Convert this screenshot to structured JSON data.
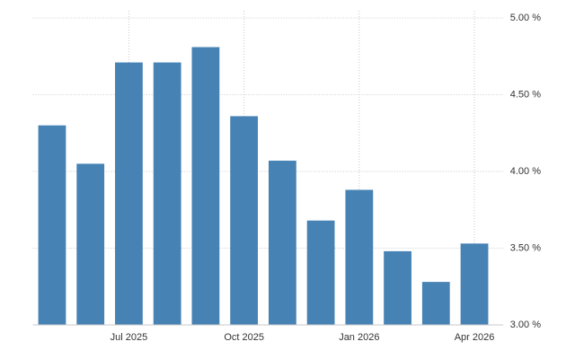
{
  "chart_data": {
    "type": "bar",
    "categories": [
      null,
      null,
      "Jul 2025",
      null,
      null,
      "Oct 2025",
      null,
      null,
      "Jan 2026",
      null,
      null,
      "Apr 2026"
    ],
    "values": [
      4.3,
      4.05,
      4.71,
      4.71,
      4.81,
      4.36,
      4.07,
      3.68,
      3.88,
      3.48,
      3.28,
      3.53
    ],
    "color": "#4682b4",
    "ylim": [
      3.0,
      5.0
    ],
    "yticks": [
      {
        "value": 3.0,
        "label": "3.00 %"
      },
      {
        "value": 3.5,
        "label": "3.50 %"
      },
      {
        "value": 4.0,
        "label": "4.00 %"
      },
      {
        "value": 4.5,
        "label": "4.50 %"
      },
      {
        "value": 5.0,
        "label": "5.00 %"
      }
    ],
    "grid": true
  }
}
